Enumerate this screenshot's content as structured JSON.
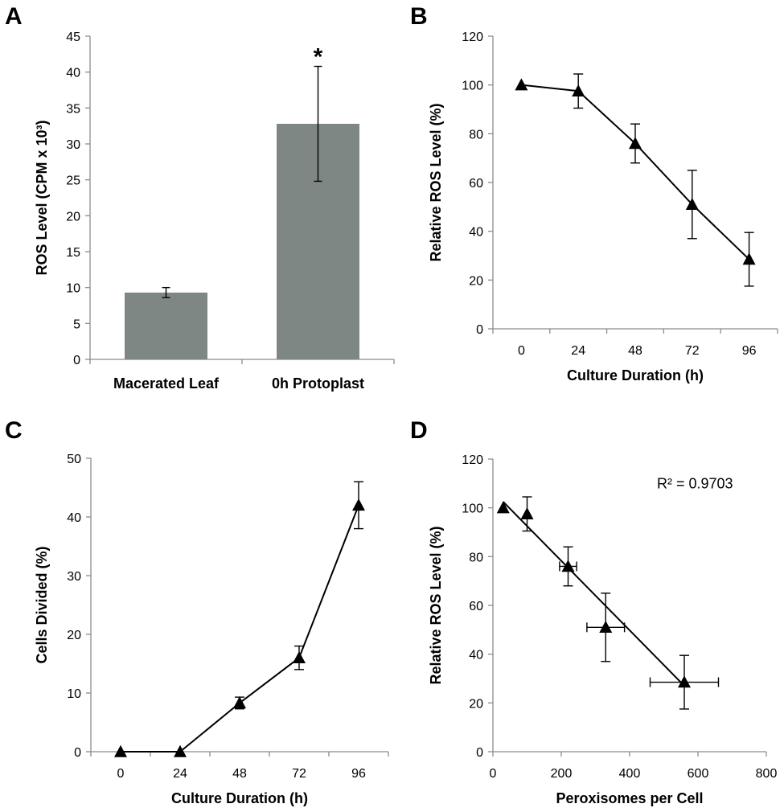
{
  "chart_data": [
    {
      "panel": "A",
      "type": "bar",
      "categories": [
        "Macerated Leaf",
        "0h Protoplast"
      ],
      "values": [
        9.3,
        32.8
      ],
      "errors": [
        0.7,
        8.0
      ],
      "ylabel": "ROS Level (CPM x 10³)",
      "xlabel": "",
      "ylim": [
        0,
        45
      ],
      "yticks": [
        0,
        5,
        10,
        15,
        20,
        25,
        30,
        35,
        40,
        45
      ],
      "annotations": [
        {
          "category": "0h Protoplast",
          "text": "*"
        }
      ],
      "bar_color": "#7f8784"
    },
    {
      "panel": "B",
      "type": "line",
      "x": [
        0,
        24,
        48,
        72,
        96
      ],
      "y": [
        100,
        97.5,
        76,
        51,
        28.5
      ],
      "yerr": [
        0,
        7,
        8,
        14,
        11
      ],
      "xlabel": "Culture Duration (h)",
      "ylabel": "Relative ROS Level (%)",
      "xticks": [
        0,
        24,
        48,
        72,
        96
      ],
      "ylim": [
        0,
        120
      ],
      "yticks": [
        0,
        20,
        40,
        60,
        80,
        100,
        120
      ]
    },
    {
      "panel": "C",
      "type": "line",
      "x": [
        0,
        24,
        48,
        72,
        96
      ],
      "y": [
        0,
        0,
        8.3,
        16,
        42
      ],
      "yerr": [
        0,
        0,
        1,
        2,
        4
      ],
      "xlabel": "Culture Duration (h)",
      "ylabel": "Cells Divided (%)",
      "xticks": [
        0,
        24,
        48,
        72,
        96
      ],
      "ylim": [
        0,
        50
      ],
      "yticks": [
        0,
        10,
        20,
        30,
        40,
        50
      ]
    },
    {
      "panel": "D",
      "type": "scatter",
      "x": [
        30,
        100,
        220,
        330,
        560
      ],
      "y": [
        100,
        97.5,
        76,
        51,
        28.5
      ],
      "xerr": [
        0,
        0,
        25,
        55,
        100
      ],
      "yerr": [
        0,
        7,
        8,
        14,
        11
      ],
      "trendline": {
        "x": [
          30,
          560
        ],
        "y": [
          102.5,
          27
        ]
      },
      "annotation": "R² = 0.9703",
      "xlabel": "Peroxisomes per Cell",
      "ylabel": "Relative ROS Level (%)",
      "xlim": [
        0,
        800
      ],
      "xticks": [
        0,
        200,
        400,
        600,
        800
      ],
      "ylim": [
        0,
        120
      ],
      "yticks": [
        0,
        20,
        40,
        60,
        80,
        100,
        120
      ]
    }
  ]
}
